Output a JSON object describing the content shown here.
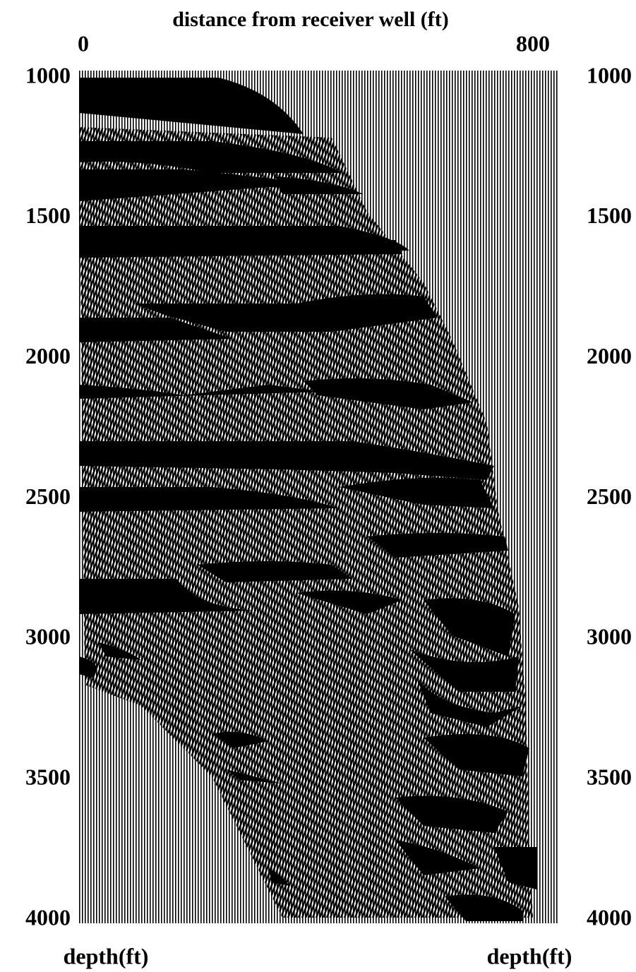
{
  "chart_data": {
    "type": "seismic",
    "title": "distance from receiver well (ft)",
    "xlim": [
      0,
      800
    ],
    "xticks": [
      0,
      800
    ],
    "ylim": [
      1000,
      4000
    ],
    "yticks": [
      1000,
      1500,
      2000,
      2500,
      3000,
      3500,
      4000
    ],
    "y_inverted": true,
    "y_label_left": "depth(ft)",
    "y_label_right": "depth(ft)"
  }
}
